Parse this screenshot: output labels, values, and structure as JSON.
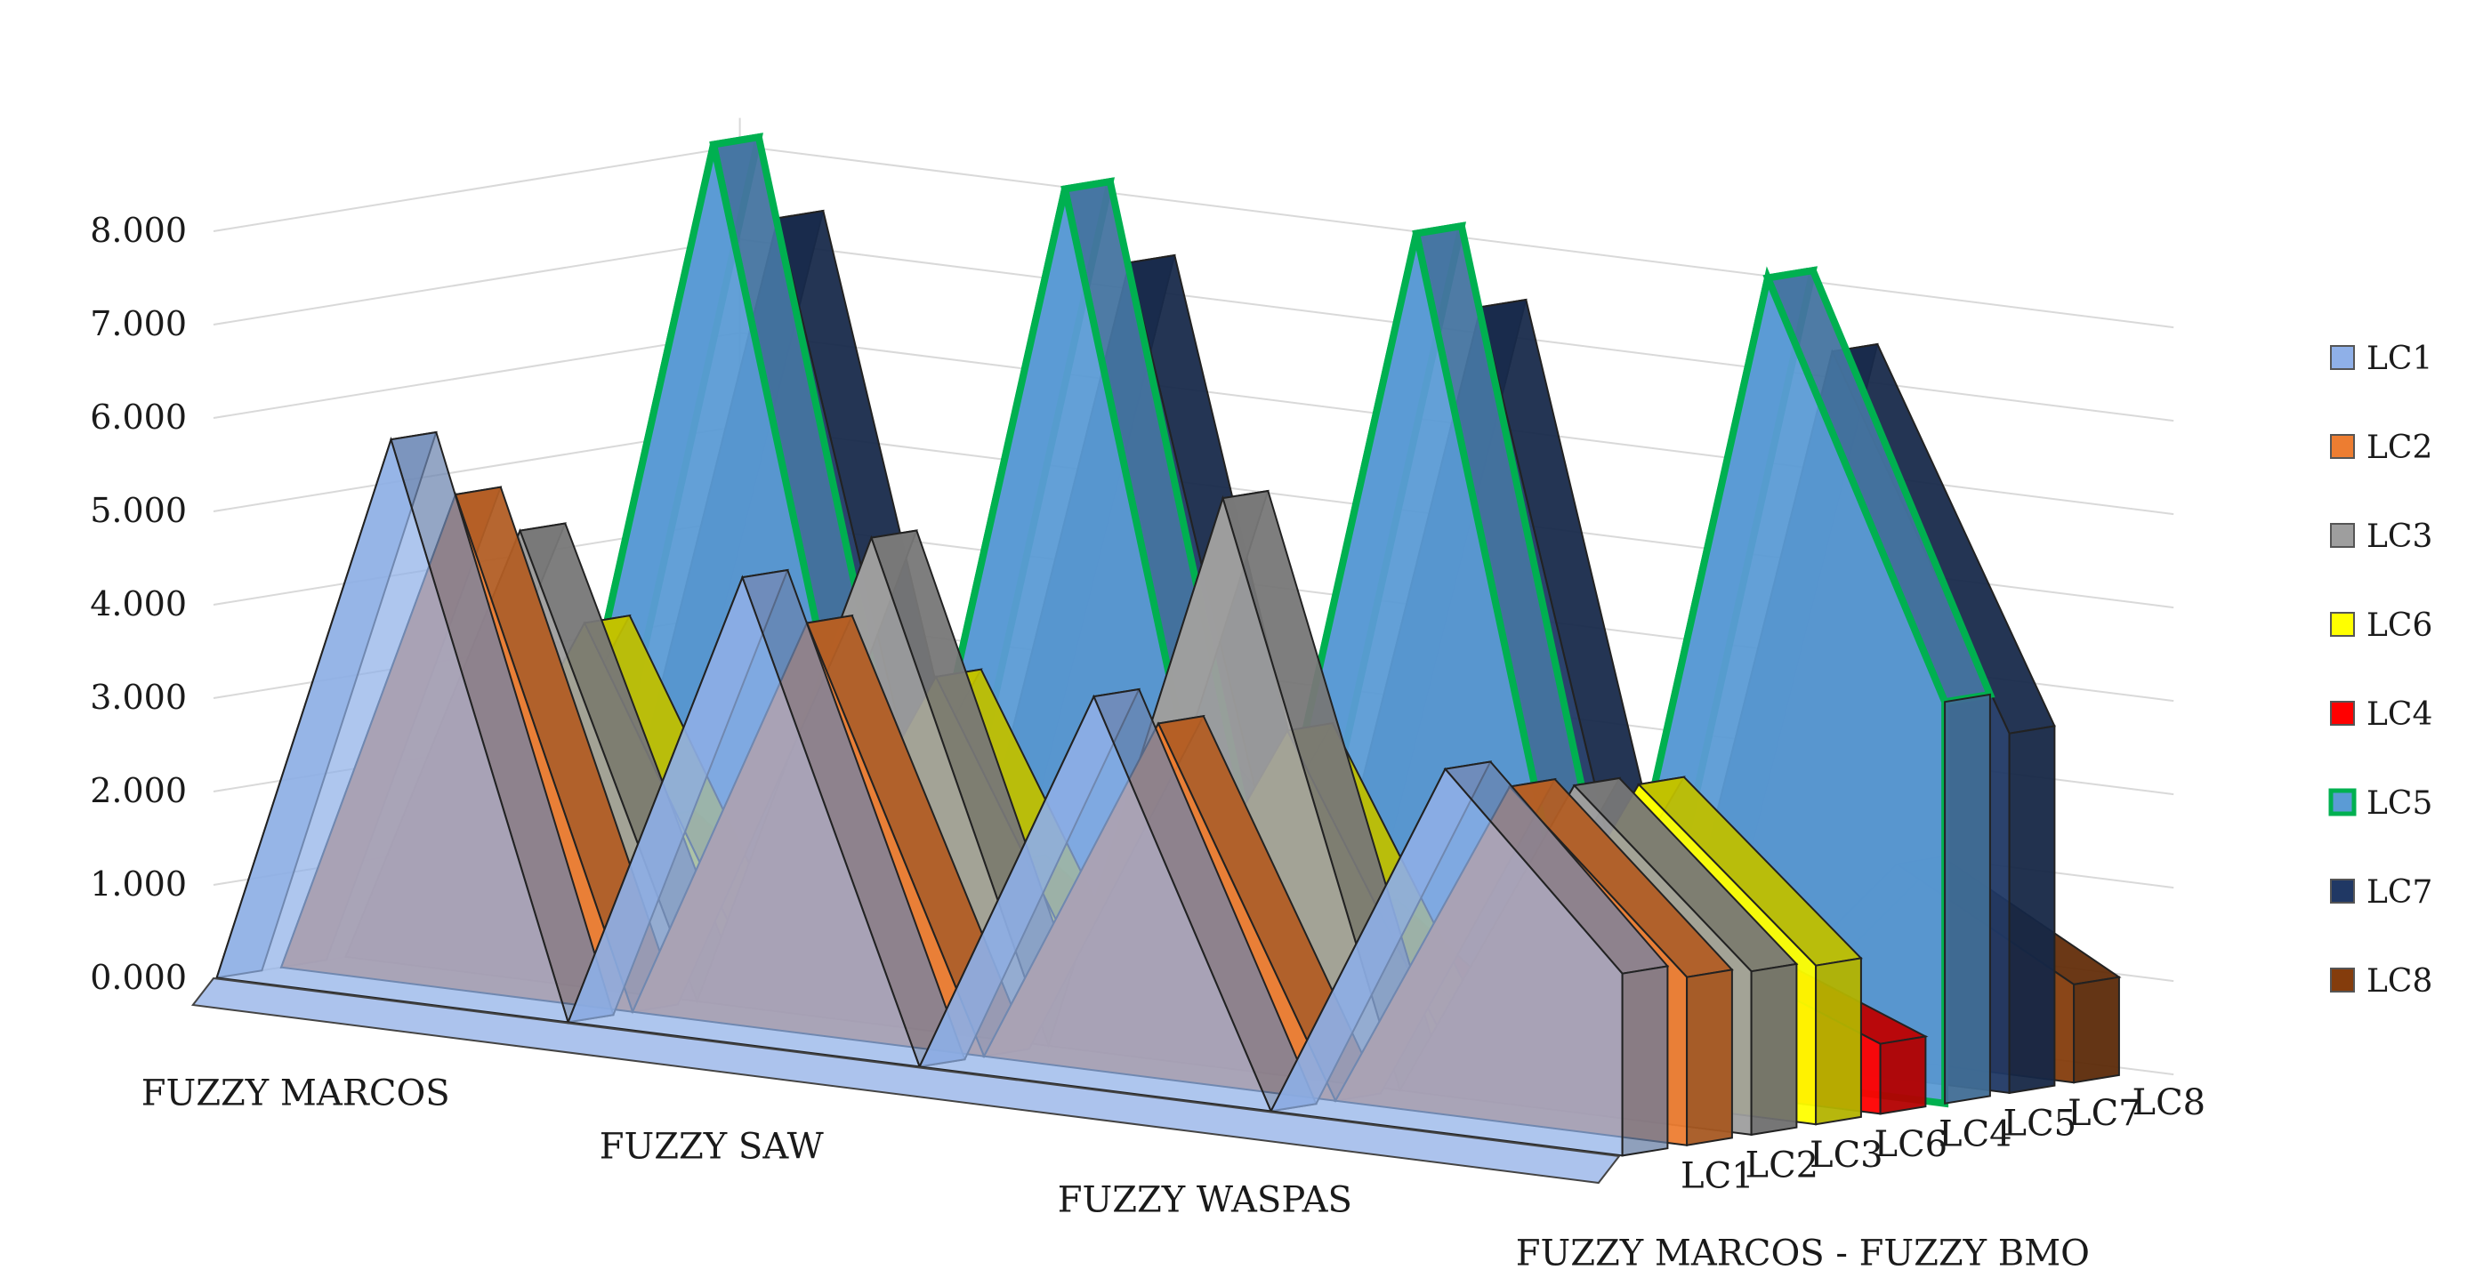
{
  "chart_data": {
    "type": "3d-area",
    "yticks": [
      "0.000",
      "1.000",
      "2.000",
      "3.000",
      "4.000",
      "5.000",
      "6.000",
      "7.000",
      "8.000"
    ],
    "ylim": [
      0,
      8
    ],
    "categories": [
      "FUZZY MARCOS",
      "FUZZY SAW",
      "FUZZY WASPAS",
      "FUZZY MARCOS - FUZZY BMO"
    ],
    "grid": true,
    "legend_position": "right",
    "depth_order": [
      "LC1",
      "LC2",
      "LC3",
      "LC6",
      "LC4",
      "LC5",
      "LC7",
      "LC8"
    ],
    "series": [
      {
        "name": "LC1",
        "color": "#8fb0e8",
        "values": [
          6.0,
          5.0,
          4.2,
          3.9
        ]
      },
      {
        "name": "LC2",
        "color": "#ed7d31",
        "values": [
          5.3,
          4.4,
          3.8,
          3.6
        ]
      },
      {
        "name": "LC3",
        "color": "#9e9e9e",
        "values": [
          4.8,
          5.2,
          6.1,
          3.5
        ]
      },
      {
        "name": "LC6",
        "color": "#ffff00",
        "values": [
          3.7,
          3.6,
          3.5,
          3.4
        ]
      },
      {
        "name": "LC4",
        "color": "#ff0000",
        "values": [
          1.5,
          1.5,
          1.5,
          1.5
        ]
      },
      {
        "name": "LC5",
        "color": "#5b9bd5",
        "stroke": "#00b050",
        "values": [
          8.6,
          8.6,
          8.6,
          8.6
        ]
      },
      {
        "name": "LC7",
        "color": "#203864",
        "values": [
          7.7,
          7.7,
          7.7,
          7.7
        ]
      },
      {
        "name": "LC8",
        "color": "#843c0c",
        "values": [
          2.1,
          2.1,
          2.1,
          2.1
        ]
      }
    ]
  }
}
